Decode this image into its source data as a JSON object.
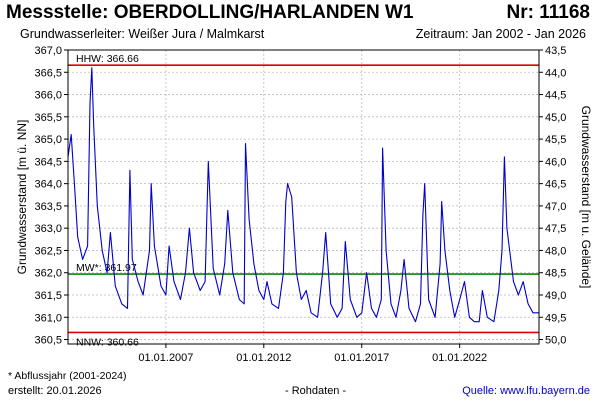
{
  "header": {
    "title": "Messstelle: OBERDOLLING/HARLANDEN W1",
    "number": "Nr: 11168",
    "aquifer": "Grundwasserleiter:  Weißer Jura / Malmkarst",
    "period": "Zeitraum: Jan 2002 - Jan 2026"
  },
  "footer": {
    "footnote": "* Abflussjahr (2001-2024)",
    "created": "erstellt:  20.01.2026",
    "rawdata": "- Rohdaten -",
    "source": "Quelle: www.lfu.bayern.de"
  },
  "colors": {
    "series": "#0000cc",
    "hhw": "#dd0000",
    "nnw": "#dd0000",
    "mw": "#008800",
    "grid": "#bbbbbb"
  },
  "chart_data": {
    "type": "line",
    "ylabel": "Grundwasserstand [m ü. NN]",
    "ylabel_right": "Grundwasserstand [m u. Gelände]",
    "ylim": [
      360.4,
      367.0
    ],
    "xlim": [
      "2002-01-01",
      "2026-01-20"
    ],
    "grid": true,
    "yticks": [
      "360,5",
      "361,0",
      "361,5",
      "362,0",
      "362,5",
      "363,0",
      "363,5",
      "364,0",
      "364,5",
      "365,0",
      "365,5",
      "366,0",
      "366,5",
      "367,0"
    ],
    "yticks_right": [
      "50,0",
      "49,5",
      "49,0",
      "48,5",
      "48,0",
      "47,5",
      "47,0",
      "46,5",
      "46,0",
      "45,5",
      "45,0",
      "44,5",
      "44,0",
      "43,5"
    ],
    "xticks": [
      "01.01.2007",
      "01.01.2012",
      "01.01.2017",
      "01.01.2022"
    ],
    "reference_lines": [
      {
        "label": "HHW: 366.66",
        "value": 366.66
      },
      {
        "label": "MW*: 361.97",
        "value": 361.97
      },
      {
        "label": "NNW: 360.66",
        "value": 360.66
      }
    ],
    "series": [
      {
        "x": [
          "2002-01-01",
          "2002-03-01",
          "2002-05-01",
          "2002-07-01",
          "2002-10-01",
          "2003-01-01",
          "2003-02-15",
          "2003-03-20",
          "2003-04-25",
          "2003-07-01",
          "2003-10-01",
          "2004-01-01",
          "2004-03-01",
          "2004-06-01",
          "2004-10-01",
          "2005-01-15",
          "2005-03-01",
          "2005-04-15",
          "2005-08-01",
          "2005-11-01",
          "2006-03-01",
          "2006-04-01",
          "2006-06-01",
          "2006-10-01",
          "2007-01-01",
          "2007-03-01",
          "2007-06-01",
          "2007-10-01",
          "2008-01-01",
          "2008-03-15",
          "2008-06-01",
          "2008-10-01",
          "2009-01-01",
          "2009-03-01",
          "2009-06-01",
          "2009-10-01",
          "2010-01-01",
          "2010-03-01",
          "2010-06-01",
          "2010-10-01",
          "2011-01-01",
          "2011-01-25",
          "2011-04-01",
          "2011-07-01",
          "2011-10-01",
          "2012-01-01",
          "2012-03-01",
          "2012-06-01",
          "2012-10-01",
          "2013-01-01",
          "2013-02-15",
          "2013-03-20",
          "2013-06-05",
          "2013-09-01",
          "2013-12-01",
          "2014-03-01",
          "2014-06-01",
          "2014-10-01",
          "2015-01-01",
          "2015-03-01",
          "2015-06-01",
          "2015-10-01",
          "2016-01-01",
          "2016-03-01",
          "2016-06-01",
          "2016-10-01",
          "2017-01-01",
          "2017-04-01",
          "2017-07-01",
          "2017-10-01",
          "2018-01-01",
          "2018-01-25",
          "2018-04-01",
          "2018-07-01",
          "2018-10-01",
          "2019-01-01",
          "2019-03-01",
          "2019-06-01",
          "2019-10-01",
          "2020-01-01",
          "2020-02-15",
          "2020-03-20",
          "2020-06-01",
          "2020-10-01",
          "2021-01-01",
          "2021-02-01",
          "2021-04-01",
          "2021-07-01",
          "2021-10-01",
          "2022-01-01",
          "2022-04-01",
          "2022-07-01",
          "2022-10-01",
          "2023-01-01",
          "2023-03-01",
          "2023-06-01",
          "2023-10-01",
          "2024-01-01",
          "2024-03-01",
          "2024-04-15",
          "2024-06-01",
          "2024-10-01",
          "2025-01-01",
          "2025-04-01",
          "2025-07-01",
          "2025-10-01",
          "2026-01-15"
        ],
        "y": [
          364.6,
          365.1,
          364.0,
          362.8,
          362.3,
          362.6,
          365.8,
          366.6,
          365.3,
          363.5,
          362.5,
          362.0,
          362.9,
          361.7,
          361.3,
          361.2,
          364.3,
          362.3,
          361.8,
          361.5,
          362.5,
          364.0,
          362.6,
          361.7,
          361.5,
          362.6,
          361.8,
          361.4,
          362.0,
          363.0,
          362.0,
          361.6,
          361.8,
          364.5,
          362.1,
          361.5,
          362.2,
          363.4,
          362.0,
          361.4,
          361.3,
          364.9,
          363.2,
          362.2,
          361.6,
          361.4,
          361.8,
          361.3,
          361.2,
          362.0,
          363.6,
          364.0,
          363.7,
          362.0,
          361.4,
          361.6,
          361.1,
          361.0,
          362.0,
          362.9,
          361.3,
          361.0,
          361.2,
          362.7,
          361.4,
          361.0,
          361.1,
          362.0,
          361.2,
          361.0,
          361.4,
          364.8,
          362.5,
          361.3,
          361.0,
          361.6,
          362.3,
          361.2,
          360.9,
          361.3,
          363.3,
          364.0,
          361.4,
          361.0,
          362.2,
          363.6,
          362.5,
          361.6,
          361.0,
          361.4,
          361.8,
          361.0,
          360.9,
          360.9,
          361.6,
          361.0,
          360.9,
          361.6,
          362.5,
          364.6,
          363.0,
          361.8,
          361.5,
          361.8,
          361.3,
          361.1,
          361.1
        ]
      }
    ]
  }
}
